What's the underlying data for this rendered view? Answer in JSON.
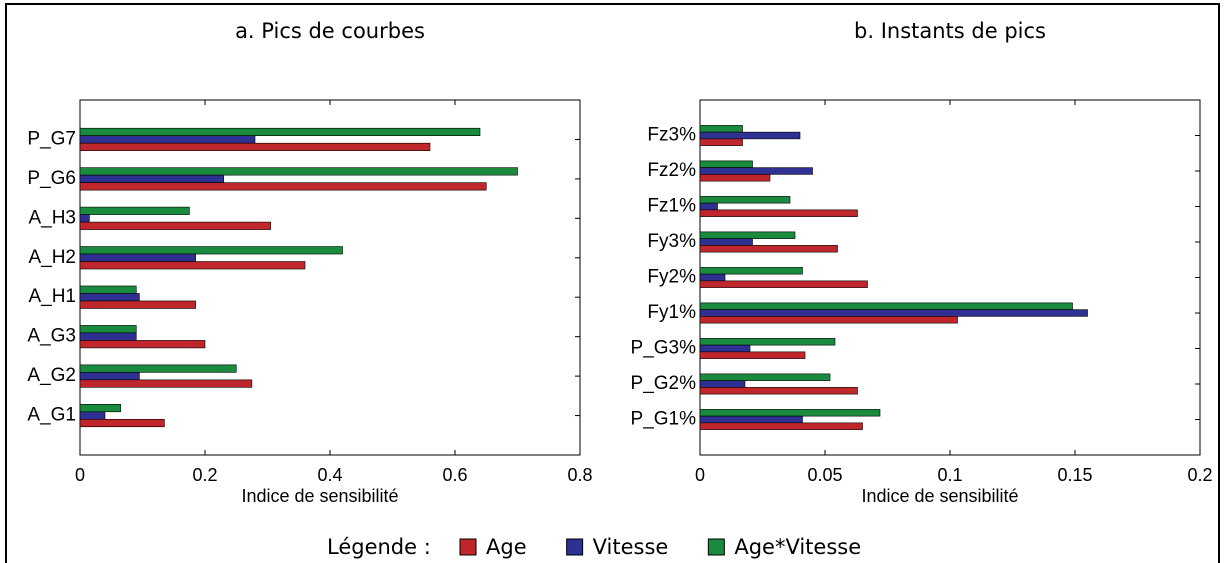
{
  "legend": {
    "title": "Légende :"
  },
  "chart_data": [
    {
      "type": "barh",
      "title": "a. Pics de courbes",
      "xlabel": "Indice de sensibilité",
      "categories": [
        "P_G7",
        "P_G6",
        "A_H3",
        "A_H2",
        "A_H1",
        "A_G3",
        "A_G2",
        "A_G1"
      ],
      "series": [
        {
          "name": "Age",
          "color": "#c0272d",
          "values": [
            0.56,
            0.65,
            0.305,
            0.36,
            0.185,
            0.2,
            0.275,
            0.135
          ]
        },
        {
          "name": "Vitesse",
          "color": "#2e3192",
          "values": [
            0.28,
            0.23,
            0.015,
            0.185,
            0.095,
            0.09,
            0.095,
            0.04
          ]
        },
        {
          "name": "Age*Vitesse",
          "color": "#1a8a3e",
          "values": [
            0.64,
            0.7,
            0.175,
            0.42,
            0.09,
            0.09,
            0.25,
            0.065
          ]
        }
      ],
      "xlim": [
        0,
        0.8
      ],
      "xticks": [
        0,
        0.2,
        0.4,
        0.6,
        0.8
      ]
    },
    {
      "type": "barh",
      "title": "b. Instants de pics",
      "xlabel": "Indice de sensibilité",
      "categories": [
        "Fz3%",
        "Fz2%",
        "Fz1%",
        "Fy3%",
        "Fy2%",
        "Fy1%",
        "P_G3%",
        "P_G2%",
        "P_G1%"
      ],
      "series": [
        {
          "name": "Age",
          "color": "#c0272d",
          "values": [
            0.017,
            0.028,
            0.063,
            0.055,
            0.067,
            0.103,
            0.042,
            0.063,
            0.065
          ]
        },
        {
          "name": "Vitesse",
          "color": "#2e3192",
          "values": [
            0.04,
            0.045,
            0.007,
            0.021,
            0.01,
            0.155,
            0.02,
            0.018,
            0.041
          ]
        },
        {
          "name": "Age*Vitesse",
          "color": "#1a8a3e",
          "values": [
            0.017,
            0.021,
            0.036,
            0.038,
            0.041,
            0.149,
            0.054,
            0.052,
            0.072
          ]
        }
      ],
      "xlim": [
        0,
        0.2
      ],
      "xticks": [
        0,
        0.05,
        0.1,
        0.15,
        0.2
      ]
    }
  ]
}
